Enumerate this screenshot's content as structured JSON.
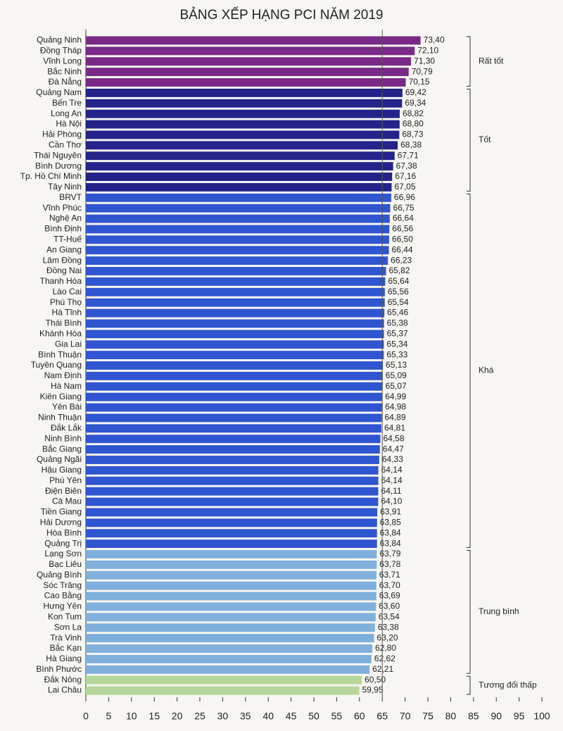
{
  "chart_data": {
    "type": "bar",
    "orientation": "horizontal",
    "title": "BẢNG XẾP HẠNG PCI NĂM 2019",
    "xlim": [
      0,
      100
    ],
    "xticks": [
      0,
      5,
      10,
      15,
      20,
      25,
      30,
      35,
      40,
      45,
      50,
      55,
      60,
      65,
      70,
      75,
      80,
      85,
      90,
      95,
      100
    ],
    "reference_line": 65,
    "series": [
      {
        "name": "Rất tốt",
        "color": "#7a2a86",
        "categories": [
          "Quảng Ninh",
          "Đồng Tháp",
          "Vĩnh Long",
          "Bắc Ninh",
          "Đà Nẵng"
        ],
        "values": [
          73.4,
          72.1,
          71.3,
          70.79,
          70.15
        ],
        "value_labels": [
          "73,40",
          "72,10",
          "71,30",
          "70,79",
          "70,15"
        ]
      },
      {
        "name": "Tốt",
        "color": "#23238a",
        "categories": [
          "Quảng Nam",
          "Bến Tre",
          "Long An",
          "Hà Nội",
          "Hải Phòng",
          "Cần Thơ",
          "Thái Nguyên",
          "Bình Dương",
          "Tp. Hồ Chí Minh",
          "Tây Ninh"
        ],
        "values": [
          69.42,
          69.34,
          68.82,
          68.8,
          68.73,
          68.38,
          67.71,
          67.38,
          67.16,
          67.05
        ],
        "value_labels": [
          "69,42",
          "69,34",
          "68,82",
          "68,80",
          "68,73",
          "68,38",
          "67,71",
          "67,38",
          "67,16",
          "67,05"
        ]
      },
      {
        "name": "Khá",
        "color": "#2f55d0",
        "categories": [
          "BRVT",
          "Vĩnh Phúc",
          "Nghệ An",
          "Bình Định",
          "TT-Huế",
          "An Giang",
          "Lâm Đồng",
          "Đồng Nai",
          "Thanh Hóa",
          "Lào Cai",
          "Phú Thọ",
          "Hà Tĩnh",
          "Thái Bình",
          "Khánh Hòa",
          "Gia Lai",
          "Bình Thuận",
          "Tuyên Quang",
          "Nam Định",
          "Hà Nam",
          "Kiên Giang",
          "Yên Bái",
          "Ninh Thuận",
          "Đắk Lắk",
          "Ninh Bình",
          "Bắc Giang",
          "Quảng Ngãi",
          "Hậu Giang",
          "Phú Yên",
          "Điện Biên",
          "Cà Mau",
          "Tiền Giang",
          "Hải Dương",
          "Hòa Bình",
          "Quảng Trị"
        ],
        "values": [
          66.96,
          66.75,
          66.64,
          66.56,
          66.5,
          66.44,
          66.23,
          65.82,
          65.64,
          65.56,
          65.54,
          65.46,
          65.38,
          65.37,
          65.34,
          65.33,
          65.13,
          65.09,
          65.07,
          64.99,
          64.98,
          64.89,
          64.81,
          64.58,
          64.47,
          64.33,
          64.14,
          64.14,
          64.11,
          64.1,
          63.91,
          63.85,
          63.84,
          63.84
        ],
        "value_labels": [
          "66,96",
          "66,75",
          "66,64",
          "66,56",
          "66,50",
          "66,44",
          "66,23",
          "65,82",
          "65,64",
          "65,56",
          "65,54",
          "65,46",
          "65,38",
          "65,37",
          "65,34",
          "65,33",
          "65,13",
          "65,09",
          "65,07",
          "64,99",
          "64,98",
          "64,89",
          "64,81",
          "64,58",
          "64,47",
          "64,33",
          "64,14",
          "64,14",
          "64,11",
          "64,10",
          "63,91",
          "63,85",
          "63,84",
          "63,84"
        ]
      },
      {
        "name": "Trung bình",
        "color": "#7fb0dc",
        "categories": [
          "Lạng Sơn",
          "Bạc Liêu",
          "Quảng Bình",
          "Sóc Trăng",
          "Cao Bằng",
          "Hưng Yên",
          "Kon Tum",
          "Sơn La",
          "Trà Vinh",
          "Bắc Kạn",
          "Hà Giang",
          "Bình Phước"
        ],
        "values": [
          63.79,
          63.78,
          63.71,
          63.7,
          63.69,
          63.6,
          63.54,
          63.38,
          63.2,
          62.8,
          62.62,
          62.21
        ],
        "value_labels": [
          "63,79",
          "63,78",
          "63,71",
          "63,70",
          "63,69",
          "63,60",
          "63,54",
          "63,38",
          "63,20",
          "62,80",
          "62,62",
          "62,21"
        ]
      },
      {
        "name": "Tương đối thấp",
        "color": "#b5d89a",
        "categories": [
          "Đắk Nông",
          "Lai Châu"
        ],
        "values": [
          60.5,
          59.95
        ],
        "value_labels": [
          "60,50",
          "59,95"
        ]
      }
    ]
  }
}
